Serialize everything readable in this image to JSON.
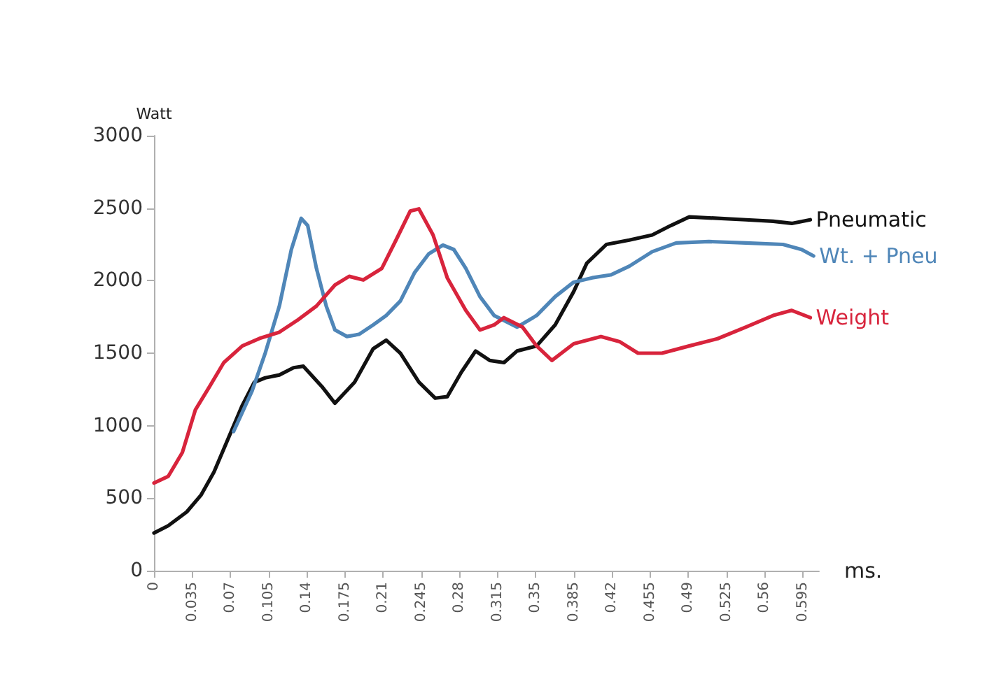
{
  "chart_data": {
    "type": "line",
    "xlabel": "ms.",
    "ylabel": "Watt",
    "xlim": [
      0,
      0.61
    ],
    "xticks": [
      0,
      0.035,
      0.07,
      0.105,
      0.14,
      0.175,
      0.21,
      0.245,
      0.28,
      0.315,
      0.35,
      0.385,
      0.42,
      0.455,
      0.49,
      0.525,
      0.56,
      0.595
    ],
    "ylim": [
      0,
      3000
    ],
    "yticks": [
      0,
      500,
      1000,
      1500,
      2000,
      2500,
      3000
    ],
    "grid": false,
    "legend": false,
    "marker": "none",
    "line_style": "solid",
    "series": [
      {
        "name": "Pneumatic",
        "color": "#111111",
        "x": [
          0,
          0.013,
          0.03,
          0.043,
          0.055,
          0.068,
          0.081,
          0.092,
          0.102,
          0.115,
          0.128,
          0.137,
          0.154,
          0.166,
          0.184,
          0.201,
          0.213,
          0.226,
          0.243,
          0.258,
          0.269,
          0.282,
          0.295,
          0.308,
          0.321,
          0.333,
          0.351,
          0.368,
          0.385,
          0.397,
          0.415,
          0.436,
          0.457,
          0.474,
          0.491,
          0.517,
          0.543,
          0.568,
          0.585,
          0.602
        ],
        "values": [
          260,
          310,
          405,
          520,
          680,
          910,
          1140,
          1300,
          1330,
          1350,
          1400,
          1410,
          1270,
          1155,
          1300,
          1530,
          1590,
          1500,
          1300,
          1190,
          1200,
          1370,
          1515,
          1450,
          1435,
          1515,
          1550,
          1695,
          1925,
          2120,
          2250,
          2280,
          2315,
          2380,
          2440,
          2430,
          2420,
          2410,
          2395,
          2420
        ]
      },
      {
        "name": "Wt. + Pneu",
        "color": "#4f86b8",
        "x": [
          0.073,
          0.09,
          0.102,
          0.115,
          0.126,
          0.135,
          0.141,
          0.149,
          0.158,
          0.166,
          0.177,
          0.188,
          0.201,
          0.213,
          0.226,
          0.239,
          0.252,
          0.265,
          0.275,
          0.286,
          0.299,
          0.312,
          0.333,
          0.351,
          0.368,
          0.385,
          0.402,
          0.419,
          0.436,
          0.457,
          0.479,
          0.509,
          0.543,
          0.577,
          0.594,
          0.605
        ],
        "values": [
          960,
          1240,
          1500,
          1825,
          2215,
          2430,
          2380,
          2085,
          1825,
          1660,
          1615,
          1630,
          1695,
          1760,
          1860,
          2055,
          2185,
          2245,
          2215,
          2085,
          1890,
          1760,
          1680,
          1760,
          1890,
          1990,
          2020,
          2040,
          2100,
          2200,
          2260,
          2270,
          2260,
          2250,
          2215,
          2170
        ]
      },
      {
        "name": "Weight",
        "color": "#d8243c",
        "x": [
          0,
          0.013,
          0.026,
          0.038,
          0.051,
          0.064,
          0.081,
          0.098,
          0.115,
          0.132,
          0.149,
          0.166,
          0.179,
          0.192,
          0.209,
          0.222,
          0.235,
          0.243,
          0.256,
          0.269,
          0.286,
          0.299,
          0.312,
          0.321,
          0.338,
          0.351,
          0.365,
          0.385,
          0.41,
          0.427,
          0.444,
          0.466,
          0.491,
          0.517,
          0.543,
          0.568,
          0.585,
          0.602
        ],
        "values": [
          605,
          650,
          815,
          1110,
          1270,
          1435,
          1550,
          1605,
          1645,
          1730,
          1825,
          1970,
          2030,
          2005,
          2085,
          2280,
          2480,
          2495,
          2315,
          2020,
          1795,
          1660,
          1695,
          1745,
          1680,
          1550,
          1450,
          1565,
          1615,
          1580,
          1500,
          1500,
          1550,
          1600,
          1680,
          1760,
          1795,
          1745
        ]
      }
    ]
  }
}
